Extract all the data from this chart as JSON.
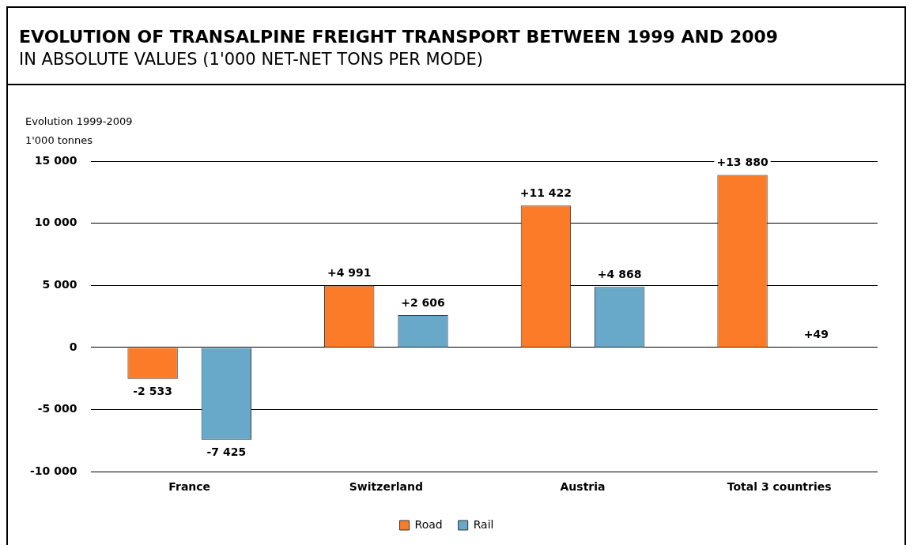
{
  "chart_data": {
    "type": "bar",
    "title": "EVOLUTION OF TRANSALPINE FREIGHT TRANSPORT BETWEEN 1999 AND 2009",
    "subtitle": "IN ABSOLUTE VALUES (1'000 NET-NET TONS PER MODE)",
    "ylabel": "Evolution 1999-2009\n1'000 tonnes",
    "categories": [
      "France",
      "Switzerland",
      "Austria",
      "Total 3 countries"
    ],
    "series": [
      {
        "name": "Road",
        "color": "#fb7b29",
        "values": [
          -2533,
          4991,
          11422,
          13880
        ],
        "value_labels": [
          "-2 533",
          "+4 991",
          "+11 422",
          "+13 880"
        ]
      },
      {
        "name": "Rail",
        "color": "#68a9c9",
        "values": [
          -7425,
          2606,
          4868,
          49
        ],
        "value_labels": [
          "-7 425",
          "+2 606",
          "+4 868",
          "+49"
        ]
      }
    ],
    "ylim": [
      -10000,
      15000
    ],
    "yticks": [
      {
        "value": -10000,
        "label": "-10 000"
      },
      {
        "value": -5000,
        "label": "-5 000"
      },
      0,
      {
        "value": 5000,
        "label": "5 000"
      },
      {
        "value": 10000,
        "label": "10 000"
      },
      {
        "value": 15000,
        "label": "15 000"
      }
    ],
    "grid": "y",
    "legend": "bottom"
  }
}
